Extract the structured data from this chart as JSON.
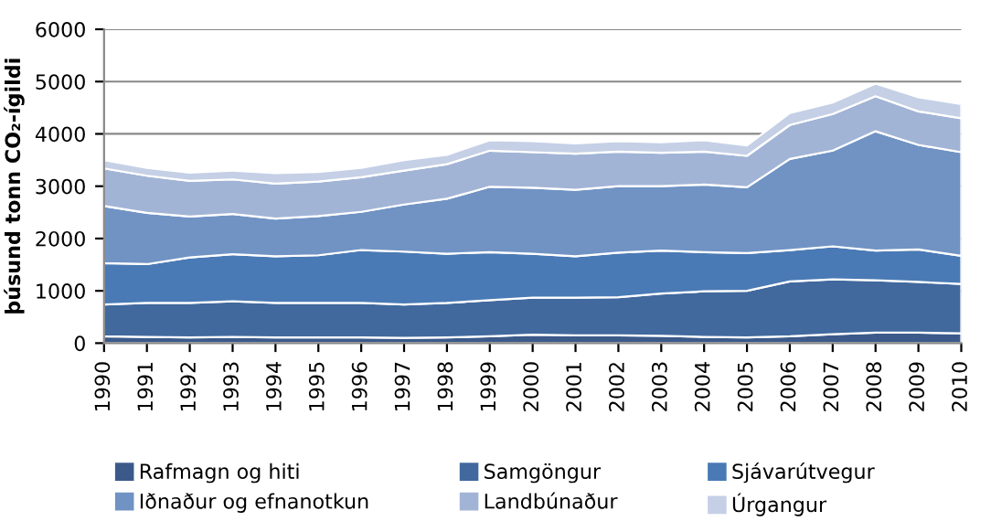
{
  "chart_data": {
    "type": "area",
    "stacked": true,
    "ylabel": "þúsund tonn CO₂-ígildi",
    "categories": [
      "1990",
      "1991",
      "1992",
      "1993",
      "1994",
      "1995",
      "1996",
      "1997",
      "1998",
      "1999",
      "2000",
      "2001",
      "2002",
      "2003",
      "2004",
      "2005",
      "2006",
      "2007",
      "2008",
      "2009",
      "2010"
    ],
    "series": [
      {
        "name": "Rafmagn og hiti",
        "color": "#3b5a8a",
        "values": [
          130,
          120,
          110,
          120,
          110,
          110,
          110,
          100,
          110,
          130,
          160,
          150,
          150,
          140,
          120,
          110,
          130,
          170,
          200,
          200,
          190
        ]
      },
      {
        "name": "Samgöngur",
        "color": "#41699e",
        "values": [
          610,
          650,
          660,
          680,
          660,
          660,
          660,
          640,
          660,
          690,
          710,
          720,
          730,
          810,
          870,
          890,
          1050,
          1050,
          1000,
          970,
          940
        ]
      },
      {
        "name": "Sjávarútvegur",
        "color": "#4a7ab5",
        "values": [
          790,
          740,
          870,
          900,
          890,
          910,
          1010,
          1010,
          940,
          920,
          840,
          790,
          850,
          820,
          750,
          720,
          600,
          630,
          570,
          620,
          540
        ]
      },
      {
        "name": "Iðnaður og efnanotkun",
        "color": "#7093c4",
        "values": [
          1090,
          980,
          780,
          770,
          720,
          750,
          730,
          900,
          1050,
          1250,
          1260,
          1270,
          1270,
          1230,
          1290,
          1260,
          1740,
          1830,
          2280,
          2000,
          1980
        ]
      },
      {
        "name": "Landbúnaður",
        "color": "#a2b4d6",
        "values": [
          720,
          710,
          680,
          660,
          670,
          660,
          660,
          650,
          660,
          690,
          680,
          690,
          660,
          640,
          630,
          600,
          650,
          700,
          670,
          640,
          650
        ]
      },
      {
        "name": "Úrgangur",
        "color": "#c5d0e6",
        "values": [
          160,
          150,
          160,
          170,
          200,
          180,
          180,
          200,
          180,
          200,
          210,
          200,
          200,
          200,
          220,
          200,
          230,
          220,
          240,
          270,
          270
        ]
      }
    ],
    "ylim": [
      0,
      6000
    ],
    "yticks": [
      0,
      1000,
      2000,
      3000,
      4000,
      5000,
      6000
    ],
    "grid": "y",
    "legend": "bottom"
  }
}
